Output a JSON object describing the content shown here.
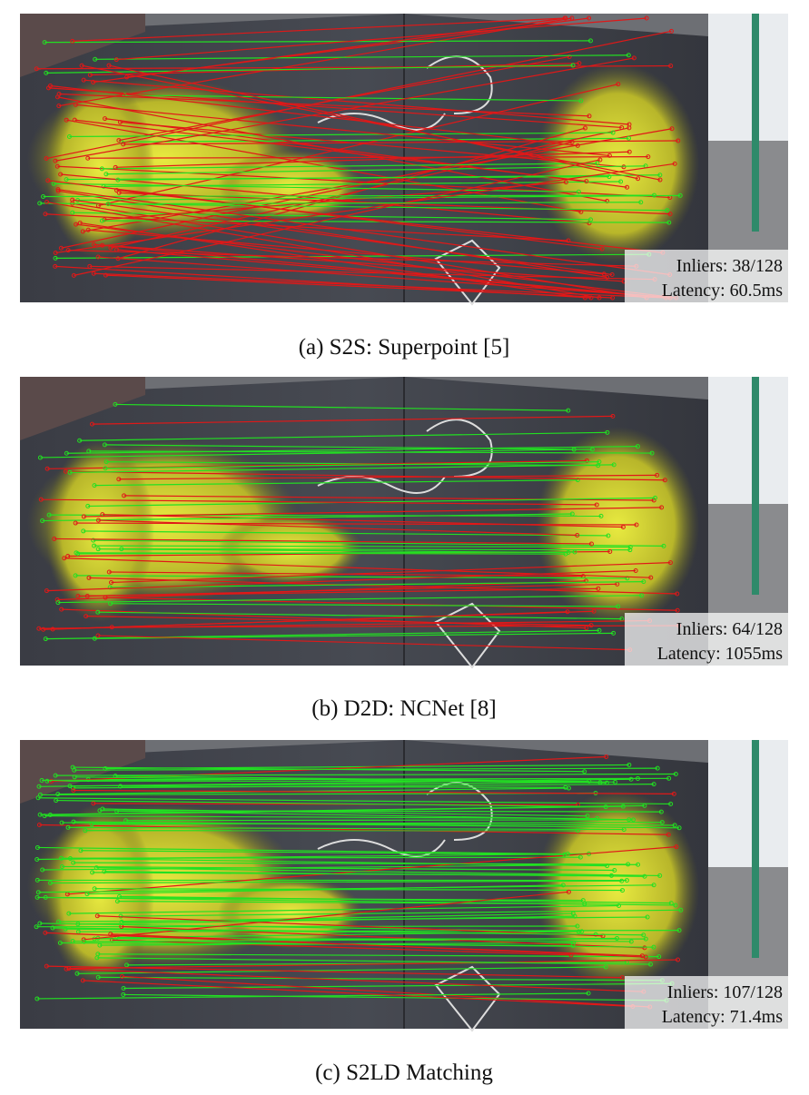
{
  "panels": [
    {
      "inliers": "Inliers: 38/128",
      "latency": "Latency: 60.5ms",
      "caption": "(a) S2S: Superpoint [5]"
    },
    {
      "inliers": "Inliers: 64/128",
      "latency": "Latency: 1055ms",
      "caption": "(b) D2D: NCNet [8]"
    },
    {
      "inliers": "Inliers: 107/128",
      "latency": "Latency: 71.4ms",
      "caption": "(c) S2LD Matching"
    }
  ]
}
